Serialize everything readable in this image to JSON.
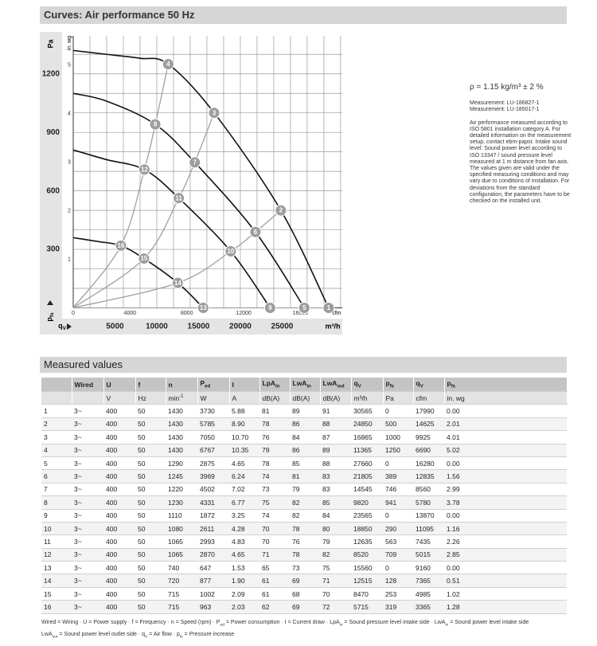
{
  "header": {
    "title": "Curves: Air performance 50 Hz"
  },
  "chart": {
    "type": "line",
    "y_label": "Pa",
    "y2_label": "in. wg",
    "x_label": "m³/h",
    "x2_label": "cfm",
    "y_symbol": [
      "p",
      {
        "sub": "fs"
      }
    ],
    "x_symbol": [
      "q",
      {
        "sub": "V"
      }
    ],
    "xlim": [
      0,
      32200
    ],
    "ylim": [
      0,
      1395
    ],
    "x2lim": [
      0,
      18950
    ],
    "y2lim": [
      0,
      5.6
    ],
    "xticks": [
      5000,
      10000,
      15000,
      20000,
      25000
    ],
    "yticks": [
      300,
      600,
      900,
      1200
    ],
    "x2ticks": [
      0,
      4000,
      8000,
      12000,
      16000
    ],
    "y2ticks": [
      1,
      2,
      3,
      4,
      5
    ],
    "xgrid": [
      2000,
      4000,
      6000,
      8000,
      10000,
      12000,
      14000,
      16000,
      18000,
      20000,
      22000,
      24000,
      26000,
      28000,
      30000,
      32000
    ],
    "ygrid": [
      100,
      200,
      300,
      400,
      500,
      600,
      700,
      800,
      900,
      1000,
      1100,
      1200,
      1300
    ],
    "grid_color": "#9a9a9a",
    "curve_color": "#111111",
    "system_color": "#a0a0a0",
    "point_color": "#9d9d9d",
    "curves": [
      {
        "x": [
          0,
          4000,
          8000,
          11365,
          16865,
          24850,
          30565
        ],
        "y": [
          1320,
          1300,
          1280,
          1250,
          1000,
          500,
          0
        ]
      },
      {
        "x": [
          0,
          4000,
          9820,
          14545,
          21805,
          27660
        ],
        "y": [
          1100,
          1060,
          941,
          746,
          389,
          0
        ]
      },
      {
        "x": [
          0,
          4000,
          8520,
          12635,
          18850,
          23565
        ],
        "y": [
          810,
          760,
          709,
          563,
          290,
          0
        ]
      },
      {
        "x": [
          0,
          3000,
          5715,
          8470,
          12515,
          15560
        ],
        "y": [
          360,
          340,
          319,
          253,
          128,
          0
        ]
      }
    ]
  },
  "side": {
    "density": "ρ = 1.15 kg/m³ ± 2 %",
    "measurement": [
      "Measurement: LU-186827-1",
      "Measurement: LU-185017-1"
    ],
    "note": "Air performance measured according to ISO 5801 installation category A. For detailed information on the measurement setup, contact ebm-papst. Intake sound level: Sound power level according to ISO 13347 / sound pressure level measured at 1 m distance from fan axis. The values given are valid under the specified measuring conditions and may vary due to conditions of installation. For deviations from the standard configuration, the parameters have to be checked on the installed unit."
  },
  "table": {
    "title": "Measured values",
    "header": [
      null,
      "Wired",
      "U",
      "f",
      "n",
      [
        "P",
        {
          "sub": "ed"
        }
      ],
      "I",
      [
        "LpA",
        {
          "sub": "in"
        }
      ],
      [
        "LwA",
        {
          "sub": "in"
        }
      ],
      [
        "LwA",
        {
          "sub": "out"
        }
      ],
      [
        "q",
        {
          "sub": "V"
        }
      ],
      [
        "p",
        {
          "sub": "fs"
        }
      ],
      [
        "q",
        {
          "sub": "V"
        }
      ],
      [
        "p",
        {
          "sub": "fs"
        }
      ]
    ],
    "units": [
      null,
      null,
      "V",
      "Hz",
      [
        "min",
        {
          "sup": "-1"
        }
      ],
      "W",
      "A",
      "dB(A)",
      "dB(A)",
      "dB(A)",
      "m³/h",
      "Pa",
      "cfm",
      "in. wg"
    ],
    "rows": [
      [
        "1",
        "3~",
        "400",
        "50",
        "1430",
        "3730",
        "5.88",
        "81",
        "89",
        "91",
        "30565",
        "0",
        "17990",
        "0.00"
      ],
      [
        "2",
        "3~",
        "400",
        "50",
        "1430",
        "5785",
        "8.90",
        "78",
        "86",
        "88",
        "24850",
        "500",
        "14625",
        "2.01"
      ],
      [
        "3",
        "3~",
        "400",
        "50",
        "1430",
        "7050",
        "10.70",
        "76",
        "84",
        "87",
        "16865",
        "1000",
        "9925",
        "4.01"
      ],
      [
        "4",
        "3~",
        "400",
        "50",
        "1430",
        "6767",
        "10.35",
        "79",
        "86",
        "89",
        "11365",
        "1250",
        "6690",
        "5.02"
      ],
      [
        "5",
        "3~",
        "400",
        "50",
        "1290",
        "2875",
        "4.65",
        "78",
        "85",
        "88",
        "27660",
        "0",
        "16280",
        "0.00"
      ],
      [
        "6",
        "3~",
        "400",
        "50",
        "1245",
        "3969",
        "6.24",
        "74",
        "81",
        "83",
        "21805",
        "389",
        "12835",
        "1.56"
      ],
      [
        "7",
        "3~",
        "400",
        "50",
        "1220",
        "4502",
        "7.02",
        "73",
        "79",
        "83",
        "14545",
        "746",
        "8560",
        "2.99"
      ],
      [
        "8",
        "3~",
        "400",
        "50",
        "1230",
        "4331",
        "6.77",
        "75",
        "82",
        "85",
        "9820",
        "941",
        "5780",
        "3.78"
      ],
      [
        "9",
        "3~",
        "400",
        "50",
        "1110",
        "1872",
        "3.25",
        "74",
        "82",
        "84",
        "23565",
        "0",
        "13870",
        "0.00"
      ],
      [
        "10",
        "3~",
        "400",
        "50",
        "1080",
        "2611",
        "4.28",
        "70",
        "78",
        "80",
        "18850",
        "290",
        "11095",
        "1.16"
      ],
      [
        "11",
        "3~",
        "400",
        "50",
        "1065",
        "2993",
        "4.83",
        "70",
        "76",
        "79",
        "12635",
        "563",
        "7435",
        "2.26"
      ],
      [
        "12",
        "3~",
        "400",
        "50",
        "1065",
        "2870",
        "4.65",
        "71",
        "78",
        "82",
        "8520",
        "709",
        "5015",
        "2.85"
      ],
      [
        "13",
        "3~",
        "400",
        "50",
        "740",
        "647",
        "1.53",
        "65",
        "73",
        "75",
        "15560",
        "0",
        "9160",
        "0.00"
      ],
      [
        "14",
        "3~",
        "400",
        "50",
        "720",
        "877",
        "1.90",
        "61",
        "69",
        "71",
        "12515",
        "128",
        "7365",
        "0.51"
      ],
      [
        "15",
        "3~",
        "400",
        "50",
        "715",
        "1002",
        "2.09",
        "61",
        "68",
        "70",
        "8470",
        "253",
        "4985",
        "1.02"
      ],
      [
        "16",
        "3~",
        "400",
        "50",
        "715",
        "963",
        "2.03",
        "62",
        "69",
        "72",
        "5715",
        "319",
        "3365",
        "1.28"
      ]
    ],
    "legend": [
      [
        "Wired = Wiring · U = Power supply · f = Frequency · n = Speed (rpm) · P",
        {
          "sub": "ed"
        },
        " = Power consumption · I = Current draw · LpA",
        {
          "sub": "in"
        },
        " = Sound pressure level intake side · LwA",
        {
          "sub": "in"
        },
        " = Sound power level intake side"
      ],
      [
        "LwA",
        {
          "sub": "out"
        },
        " = Sound power level outlet side · q",
        {
          "sub": "V"
        },
        " = Air flow · p",
        {
          "sub": "fs"
        },
        " = Pressure increase"
      ]
    ]
  }
}
